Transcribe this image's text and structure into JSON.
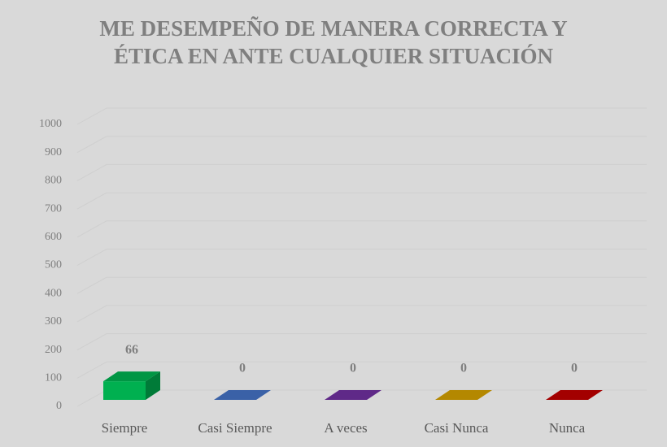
{
  "chart_data": {
    "type": "bar3d",
    "title": "ME DESEMPEÑO DE MANERA CORRECTA Y ÉTICA EN ANTE CUALQUIER SITUACIÓN",
    "categories": [
      "Siempre",
      "Casi Siempre",
      "A veces",
      "Casi Nunca",
      "Nunca"
    ],
    "values": [
      66,
      0,
      0,
      0,
      0
    ],
    "colors": [
      "#00b050",
      "#4472c4",
      "#7030a0",
      "#d4a000",
      "#c00000"
    ],
    "ylim": [
      0,
      1000
    ],
    "yticks": [
      0,
      100,
      200,
      300,
      400,
      500,
      600,
      700,
      800,
      900,
      1000
    ],
    "grid": true
  }
}
